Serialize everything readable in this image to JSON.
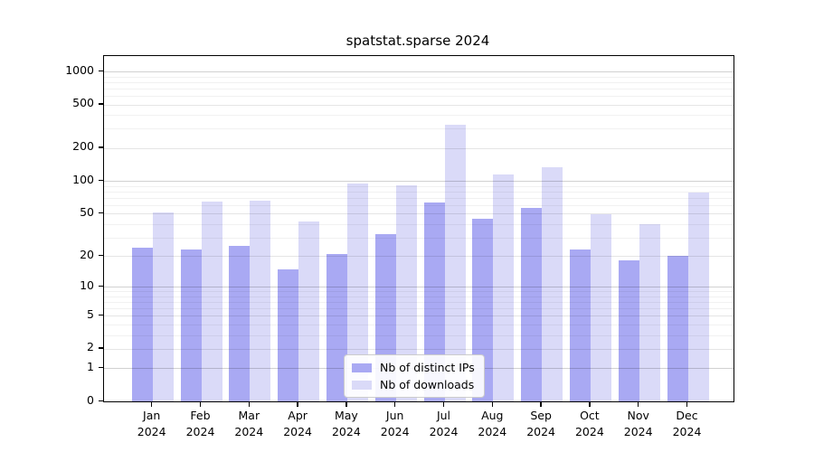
{
  "title": "spatstat.sparse 2024",
  "chart_data": {
    "type": "bar",
    "title": "spatstat.sparse 2024",
    "categories": [
      "Jan",
      "Feb",
      "Mar",
      "Apr",
      "May",
      "Jun",
      "Jul",
      "Aug",
      "Sep",
      "Oct",
      "Nov",
      "Dec"
    ],
    "category_year": "2024",
    "series": [
      {
        "name": "Nb of distinct IPs",
        "color": "#a9a9f3",
        "values": [
          24,
          23,
          25,
          15,
          21,
          32,
          63,
          45,
          56,
          23,
          18,
          20
        ]
      },
      {
        "name": "Nb of downloads",
        "color": "#dadaf8",
        "values": [
          51,
          64,
          66,
          42,
          95,
          91,
          325,
          114,
          134,
          49,
          40,
          79
        ]
      }
    ],
    "yscale": "log1p",
    "yticks": [
      0,
      1,
      2,
      5,
      10,
      20,
      50,
      100,
      200,
      500,
      1000
    ],
    "ylim": [
      0,
      1380
    ],
    "grid": true,
    "legend_position": "lower center",
    "axis_color": "#000000",
    "grid_major_color": "#c8c8c8",
    "grid_minor_color": "#e9e9e9"
  }
}
